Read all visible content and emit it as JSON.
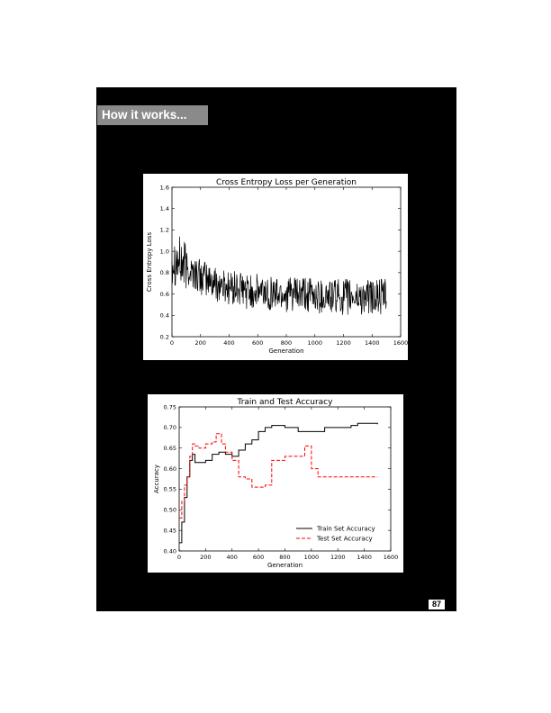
{
  "section": {
    "title": "How it works..."
  },
  "page_number": "87",
  "chart_data": [
    {
      "type": "line",
      "title": "Cross Entropy Loss per Generation",
      "xlabel": "Generation",
      "ylabel": "Cross Entropy Loss",
      "xlim": [
        0,
        1600
      ],
      "ylim": [
        0.2,
        1.6
      ],
      "xticks": [
        "0",
        "200",
        "400",
        "600",
        "800",
        "1000",
        "1200",
        "1400",
        "1600"
      ],
      "yticks": [
        "0.2",
        "0.4",
        "0.6",
        "0.8",
        "1.0",
        "1.2",
        "1.4",
        "1.6"
      ],
      "grid": false,
      "series": [
        {
          "color": "#000000",
          "x": [
            0,
            50,
            100,
            150,
            200,
            250,
            300,
            400,
            500,
            600,
            700,
            800,
            900,
            1000,
            1100,
            1200,
            1300,
            1400,
            1500
          ],
          "y": [
            0.95,
            0.9,
            0.85,
            0.8,
            0.76,
            0.73,
            0.7,
            0.66,
            0.63,
            0.62,
            0.61,
            0.6,
            0.59,
            0.58,
            0.58,
            0.57,
            0.57,
            0.57,
            0.57
          ],
          "noise_amplitude": 0.17
        }
      ]
    },
    {
      "type": "line",
      "title": "Train and Test Accuracy",
      "xlabel": "Generation",
      "ylabel": "Accuracy",
      "xlim": [
        0,
        1600
      ],
      "ylim": [
        0.4,
        0.75
      ],
      "xticks": [
        "0",
        "200",
        "400",
        "600",
        "800",
        "1000",
        "1200",
        "1400",
        "1600"
      ],
      "yticks": [
        "0.40",
        "0.45",
        "0.50",
        "0.55",
        "0.60",
        "0.65",
        "0.70",
        "0.75"
      ],
      "grid": false,
      "legend_position": "lower-right",
      "series": [
        {
          "name": "Train Set Accuracy",
          "color": "#000000",
          "dash": "solid",
          "x": [
            0,
            20,
            40,
            60,
            80,
            100,
            120,
            150,
            200,
            250,
            300,
            350,
            400,
            450,
            500,
            550,
            600,
            650,
            700,
            800,
            900,
            1000,
            1100,
            1200,
            1300,
            1350,
            1400,
            1500
          ],
          "y": [
            0.42,
            0.47,
            0.53,
            0.58,
            0.62,
            0.635,
            0.615,
            0.615,
            0.62,
            0.635,
            0.64,
            0.635,
            0.63,
            0.645,
            0.66,
            0.67,
            0.69,
            0.7,
            0.705,
            0.7,
            0.69,
            0.69,
            0.7,
            0.7,
            0.705,
            0.71,
            0.71,
            0.708
          ]
        },
        {
          "name": "Test Set Accuracy",
          "color": "#ff0000",
          "dash": "dashed",
          "x": [
            0,
            20,
            40,
            60,
            80,
            100,
            120,
            150,
            200,
            250,
            280,
            320,
            350,
            400,
            450,
            500,
            550,
            600,
            650,
            700,
            800,
            900,
            950,
            1000,
            1050,
            1100,
            1200,
            1300,
            1400,
            1500
          ],
          "y": [
            0.48,
            0.52,
            0.56,
            0.58,
            0.63,
            0.66,
            0.655,
            0.65,
            0.66,
            0.665,
            0.685,
            0.66,
            0.64,
            0.62,
            0.58,
            0.575,
            0.555,
            0.555,
            0.56,
            0.62,
            0.63,
            0.63,
            0.655,
            0.6,
            0.58,
            0.58,
            0.58,
            0.58,
            0.58,
            0.58
          ]
        }
      ]
    }
  ]
}
